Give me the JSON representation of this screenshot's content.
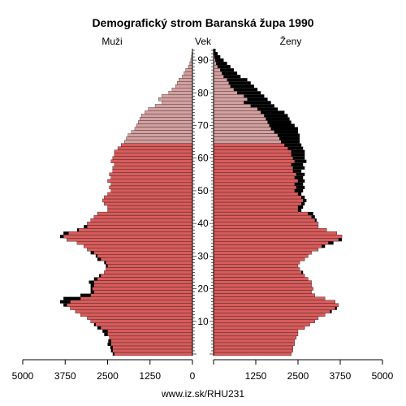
{
  "chart_data": {
    "type": "bar",
    "orientation": "horizontal",
    "title": "Demografický strom Baranská župa 1990",
    "left_label": "Muži",
    "center_label": "Vek",
    "right_label": "Ženy",
    "footer": "www.iz.sk/RHU231",
    "x_ticks_left": [
      "5000",
      "3750",
      "2500",
      "1250",
      "0"
    ],
    "x_ticks_right": [
      "1250",
      "2500",
      "3750",
      "5000"
    ],
    "x_range": [
      0,
      5000
    ],
    "y_ticks": [
      "10",
      "20",
      "30",
      "40",
      "50",
      "60",
      "70",
      "80",
      "90"
    ],
    "y_range": [
      0,
      94
    ],
    "colors": {
      "men_fill": "#d85c5c",
      "men_old_fill": "#d4a0a0",
      "women_fill": "#d85c5c",
      "women_old_fill": "#d4a0a0",
      "excess_fill": "#000000",
      "bar_stroke": "#000000"
    },
    "ages": [
      0,
      1,
      2,
      3,
      4,
      5,
      6,
      7,
      8,
      9,
      10,
      11,
      12,
      13,
      14,
      15,
      16,
      17,
      18,
      19,
      20,
      21,
      22,
      23,
      24,
      25,
      26,
      27,
      28,
      29,
      30,
      31,
      32,
      33,
      34,
      35,
      36,
      37,
      38,
      39,
      40,
      41,
      42,
      43,
      44,
      45,
      46,
      47,
      48,
      49,
      50,
      51,
      52,
      53,
      54,
      55,
      56,
      57,
      58,
      59,
      60,
      61,
      62,
      63,
      64,
      65,
      66,
      67,
      68,
      69,
      70,
      71,
      72,
      73,
      74,
      75,
      76,
      77,
      78,
      79,
      80,
      81,
      82,
      83,
      84,
      85,
      86,
      87,
      88,
      89,
      90,
      91,
      92,
      93
    ],
    "men": [
      2350,
      2400,
      2420,
      2500,
      2480,
      2450,
      2600,
      2650,
      2800,
      2900,
      3000,
      3100,
      3300,
      3450,
      3600,
      3800,
      3900,
      3800,
      3300,
      3000,
      3000,
      3000,
      3050,
      2900,
      2750,
      2600,
      2550,
      2550,
      2600,
      2800,
      2850,
      3000,
      3100,
      3200,
      3400,
      3700,
      3900,
      3800,
      3400,
      3200,
      3100,
      3000,
      2900,
      2800,
      2500,
      2500,
      2600,
      2650,
      2600,
      2500,
      2400,
      2450,
      2400,
      2500,
      2400,
      2450,
      2350,
      2350,
      2300,
      2400,
      2350,
      2300,
      2300,
      2200,
      2100,
      2000,
      1950,
      1900,
      1800,
      1700,
      1650,
      1600,
      1550,
      1500,
      1400,
      1300,
      1100,
      900,
      1000,
      900,
      700,
      600,
      500,
      450,
      400,
      300,
      250,
      200,
      120,
      80,
      50,
      30,
      15,
      5
    ],
    "women": [
      2300,
      2350,
      2350,
      2400,
      2400,
      2450,
      2500,
      2500,
      2700,
      2850,
      3000,
      3100,
      3300,
      3500,
      3650,
      3700,
      3600,
      3300,
      3000,
      2900,
      2950,
      2900,
      2900,
      2800,
      2700,
      2650,
      2550,
      2500,
      2550,
      2700,
      2800,
      2900,
      3100,
      3300,
      3550,
      3800,
      3800,
      3650,
      3350,
      3100,
      3100,
      3050,
      3000,
      2950,
      2600,
      2650,
      2700,
      2750,
      2700,
      2600,
      2650,
      2700,
      2650,
      2700,
      2650,
      2700,
      2600,
      2700,
      2650,
      2750,
      2700,
      2700,
      2700,
      2650,
      2600,
      2550,
      2550,
      2550,
      2500,
      2500,
      2400,
      2300,
      2250,
      2200,
      2100,
      1900,
      1800,
      1700,
      1600,
      1500,
      1400,
      1300,
      1200,
      1100,
      1000,
      800,
      700,
      600,
      500,
      400,
      300,
      200,
      120,
      60
    ],
    "old_age_from": 65
  }
}
